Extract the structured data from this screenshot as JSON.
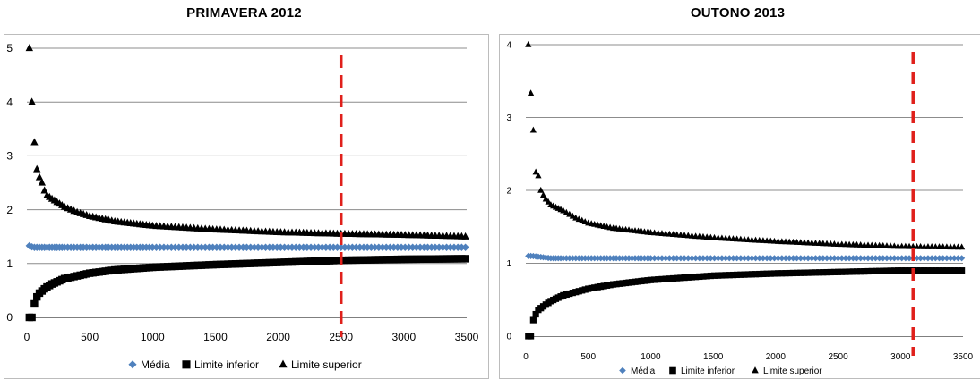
{
  "colors": {
    "media": "#4f81bd",
    "limits": "#000000",
    "cutoff": "#e0201b",
    "grid": "#8c8c8c"
  },
  "legend": {
    "media": "Média",
    "inferior": "Limite inferior",
    "superior": "Limite superior"
  },
  "chart_data": [
    {
      "type": "scatter",
      "title": "PRIMAVERA  2012",
      "xlim": [
        0,
        3500
      ],
      "ylim": [
        0,
        5
      ],
      "xticks": [
        0,
        500,
        1000,
        1500,
        2000,
        2500,
        3000,
        3500
      ],
      "yticks": [
        0,
        1,
        2,
        3,
        4,
        5
      ],
      "grid": "horizontal",
      "legend_position": "bottom",
      "cutoff_x": 2500,
      "series": [
        {
          "name": "Média",
          "marker": "diamond",
          "x": [
            20,
            40,
            60,
            100,
            200,
            500,
            1000,
            2000,
            3500
          ],
          "y": [
            1.33,
            1.31,
            1.3,
            1.3,
            1.3,
            1.3,
            1.3,
            1.3,
            1.3
          ]
        },
        {
          "name": "Limite inferior",
          "marker": "square",
          "x": [
            20,
            40,
            60,
            80,
            100,
            150,
            200,
            300,
            500,
            700,
            1000,
            1500,
            2000,
            2500,
            3000,
            3500
          ],
          "y": [
            0,
            0,
            0.25,
            0.38,
            0.45,
            0.55,
            0.62,
            0.72,
            0.82,
            0.88,
            0.93,
            0.98,
            1.02,
            1.06,
            1.08,
            1.09
          ]
        },
        {
          "name": "Limite superior",
          "marker": "triangle",
          "x": [
            20,
            50,
            70,
            80,
            100,
            120,
            150,
            200,
            300,
            400,
            500,
            700,
            1000,
            1500,
            2000,
            2500,
            3000,
            3500
          ],
          "y": [
            5.0,
            3.5,
            3.0,
            2.75,
            2.6,
            2.5,
            2.28,
            2.2,
            2.05,
            1.95,
            1.88,
            1.78,
            1.7,
            1.63,
            1.58,
            1.55,
            1.53,
            1.5
          ]
        }
      ]
    },
    {
      "type": "scatter",
      "title": "OUTONO 2013",
      "xlim": [
        0,
        3500
      ],
      "ylim": [
        0,
        4
      ],
      "xticks": [
        0,
        500,
        1000,
        1500,
        2000,
        2500,
        3000,
        3500
      ],
      "yticks": [
        0,
        1,
        2,
        3,
        4
      ],
      "grid": "horizontal",
      "legend_position": "bottom",
      "cutoff_x": 3100,
      "series": [
        {
          "name": "Média",
          "marker": "diamond",
          "x": [
            20,
            50,
            100,
            200,
            500,
            1000,
            2000,
            3500
          ],
          "y": [
            1.1,
            1.1,
            1.09,
            1.07,
            1.07,
            1.07,
            1.07,
            1.07
          ]
        },
        {
          "name": "Limite inferior",
          "marker": "square",
          "x": [
            20,
            40,
            60,
            80,
            100,
            150,
            200,
            300,
            500,
            700,
            1000,
            1500,
            2000,
            2500,
            3000,
            3500
          ],
          "y": [
            0,
            0,
            0.22,
            0.3,
            0.36,
            0.42,
            0.48,
            0.56,
            0.65,
            0.71,
            0.77,
            0.83,
            0.86,
            0.88,
            0.9,
            0.9
          ]
        },
        {
          "name": "Limite superior",
          "marker": "triangle",
          "x": [
            20,
            50,
            70,
            80,
            100,
            120,
            150,
            200,
            300,
            400,
            500,
            700,
            1000,
            1500,
            2000,
            2500,
            3000,
            3500
          ],
          "y": [
            4.0,
            3.0,
            2.65,
            2.25,
            2.2,
            2.0,
            1.9,
            1.8,
            1.72,
            1.62,
            1.55,
            1.48,
            1.42,
            1.35,
            1.3,
            1.26,
            1.23,
            1.22
          ]
        }
      ]
    }
  ]
}
